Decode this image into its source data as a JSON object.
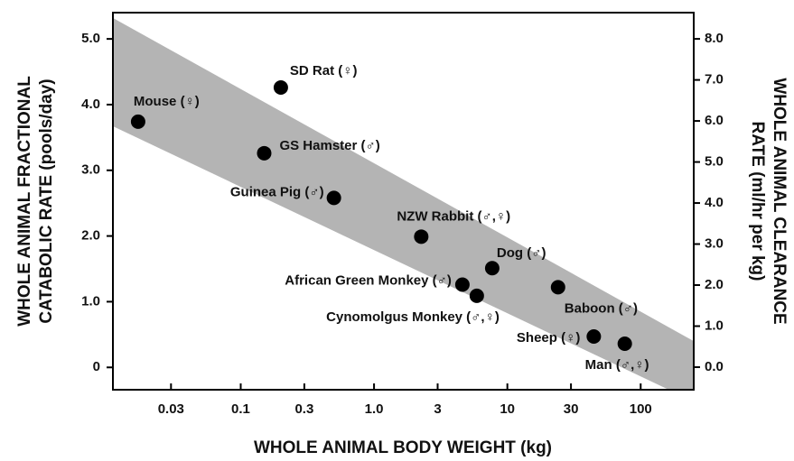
{
  "chart_data": {
    "type": "scatter",
    "x_label": "WHOLE ANIMAL BODY WEIGHT (kg)",
    "y_label": [
      "WHOLE ANIMAL FRACTIONAL",
      "CATABOLIC RATE (pools/day)"
    ],
    "y2_label": [
      "WHOLE ANIMAL CLEARANCE",
      "RATE (ml/hr per kg)"
    ],
    "x_log": true,
    "xlim": [
      0.011,
      250
    ],
    "xticks": [
      0.03,
      0.1,
      0.3,
      {
        "value": 1,
        "label": "1.0"
      },
      3,
      10,
      30,
      100
    ],
    "ylim": [
      -0.34,
      5.4
    ],
    "yticks": [
      0,
      {
        "value": 1,
        "label": "1.0"
      },
      {
        "value": 2,
        "label": "2.0"
      },
      {
        "value": 3,
        "label": "3.0"
      },
      {
        "value": 4,
        "label": "4.0"
      },
      {
        "value": 5,
        "label": "5.0"
      }
    ],
    "y2lim": [
      -0.55,
      8.64
    ],
    "y2ticks": [
      {
        "value": 0,
        "label": "0.0"
      },
      {
        "value": 1,
        "label": "1.0"
      },
      {
        "value": 2,
        "label": "2.0"
      },
      {
        "value": 3,
        "label": "3.0"
      },
      {
        "value": 4,
        "label": "4.0"
      },
      {
        "value": 5,
        "label": "5.0"
      },
      {
        "value": 6,
        "label": "6.0"
      },
      {
        "value": 7,
        "label": "7.0"
      },
      {
        "value": 8,
        "label": "8.0"
      }
    ],
    "band": {
      "color": "#b4b4b4",
      "x": [
        0.011,
        250
      ],
      "upper": [
        5.32,
        0.4
      ],
      "lower": [
        3.67,
        -0.52
      ]
    },
    "series": [
      {
        "color": "#000000",
        "labels": [
          "Mouse (♀)",
          "SD Rat (♀)",
          "GS Hamster (♂)",
          "Guinea Pig (♂)",
          "NZW Rabbit (♂,♀)",
          "Dog (♂)",
          "African Green Monkey (♂)",
          "Cynomolgus Monkey (♂,♀)",
          "Baboon (♂)",
          "Sheep (♀)",
          "Man (♂,♀)"
        ],
        "x": [
          0.017,
          0.2,
          0.15,
          0.5,
          2.26,
          7.7,
          4.6,
          5.9,
          24,
          44.5,
          76
        ],
        "values": [
          3.74,
          4.26,
          3.26,
          2.58,
          1.99,
          1.51,
          1.26,
          1.09,
          1.22,
          0.47,
          0.36
        ]
      }
    ]
  }
}
